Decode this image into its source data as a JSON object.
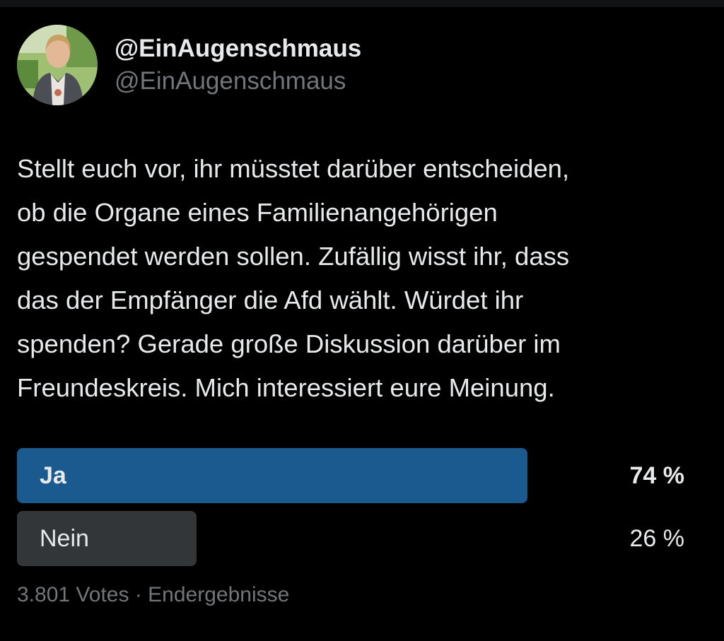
{
  "author": {
    "display_name": "@EinAugenschmaus",
    "handle": "@EinAugenschmaus",
    "avatar_icon": "profile-photo-avatar"
  },
  "tweet": {
    "lines": [
      "Stellt euch vor, ihr müsstet darüber entscheiden,",
      "ob die Organe eines Familienangehörigen",
      "gespendet werden sollen. Zufällig wisst ihr, dass",
      "das der Empfänger die Afd wählt. Würdet ihr",
      "spenden? Gerade große Diskussion darüber im",
      "Freundeskreis. Mich interessiert eure Meinung."
    ]
  },
  "poll": {
    "options": [
      {
        "label": "Ja",
        "percent_text": "74 %",
        "percent": 74,
        "winner": true
      },
      {
        "label": "Nein",
        "percent_text": "26 %",
        "percent": 26,
        "winner": false
      }
    ],
    "votes": "3.801 Votes",
    "separator": "·",
    "status": "Endergebnisse"
  },
  "colors": {
    "background": "#000000",
    "winner_bar": "#1a5a8f",
    "loser_bar": "#333639",
    "text_primary": "#e7e9ea",
    "text_secondary": "#71767b"
  }
}
